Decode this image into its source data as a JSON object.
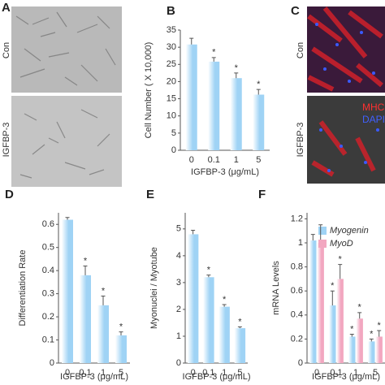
{
  "image_panels": [
    {
      "letter": "A",
      "labels": [
        "Con",
        "IGFBP-3"
      ]
    },
    {
      "letter": "C",
      "labels": [
        "Con",
        "IGFBP-3"
      ],
      "stains": [
        "MHC",
        "DAPI"
      ]
    }
  ],
  "chart_data": [
    {
      "type": "bar",
      "letter": "B",
      "y_label": "Cell Number ( X 10,000)",
      "x_label": "IGFBP-3 (μg/mL)",
      "categories": [
        "0",
        "0.1",
        "1",
        "5"
      ],
      "values": [
        30.8,
        25.8,
        21,
        16.2
      ],
      "errors": [
        1.8,
        1.2,
        1.5,
        1.5
      ],
      "annotations": [
        null,
        "*",
        "*",
        "*"
      ],
      "color": "#9fd3f5",
      "ylim": [
        0,
        35
      ],
      "yticks": [
        0,
        5,
        10,
        15,
        20,
        25,
        30,
        35
      ]
    },
    {
      "type": "bar",
      "letter": "D",
      "y_label": "Differentiation Rate",
      "x_label": "IGFBP-3 (μg/mL)",
      "categories": [
        "0",
        "0.1",
        "1",
        "5"
      ],
      "values": [
        0.62,
        0.38,
        0.25,
        0.12
      ],
      "errors": [
        0.01,
        0.04,
        0.04,
        0.015
      ],
      "annotations": [
        null,
        "*",
        "*",
        "*"
      ],
      "color": "#9fd3f5",
      "ylim": [
        0,
        0.65
      ],
      "yticks": [
        0,
        0.1,
        0.2,
        0.3,
        0.4,
        0.5,
        0.6
      ]
    },
    {
      "type": "bar",
      "letter": "E",
      "y_label": "Myonuclei / Myotube",
      "x_label": "IGFBP-3 (μg/mL)",
      "categories": [
        "0",
        "0.1",
        "1",
        "5"
      ],
      "values": [
        4.8,
        3.2,
        2.1,
        1.3
      ],
      "errors": [
        0.15,
        0.08,
        0.08,
        0.05
      ],
      "annotations": [
        null,
        "*",
        "*",
        "*"
      ],
      "color": "#9fd3f5",
      "ylim": [
        0,
        5.6
      ],
      "yticks": [
        0,
        1,
        2,
        3,
        4,
        5
      ]
    },
    {
      "type": "bar",
      "letter": "F",
      "y_label": "mRNA Levels",
      "x_label": "IGFBP-3 (μg/mL)",
      "categories": [
        "0",
        "0.1",
        "1",
        "5"
      ],
      "series": [
        {
          "name": "Myogenin",
          "color": "#9fd3f5",
          "values": [
            1.02,
            0.48,
            0.22,
            0.18
          ],
          "errors": [
            0.05,
            0.12,
            0.02,
            0.02
          ],
          "annotations": [
            null,
            "*",
            "*",
            "*"
          ]
        },
        {
          "name": "MyoD",
          "color": "#f2a7c0",
          "values": [
            1.0,
            0.7,
            0.37,
            0.22
          ],
          "errors": [
            0.15,
            0.12,
            0.05,
            0.05
          ],
          "annotations": [
            null,
            "*",
            "*",
            "*"
          ]
        }
      ],
      "ylim": [
        0,
        1.25
      ],
      "yticks": [
        0,
        0.2,
        0.4,
        0.6,
        0.8,
        1,
        1.2
      ]
    }
  ]
}
